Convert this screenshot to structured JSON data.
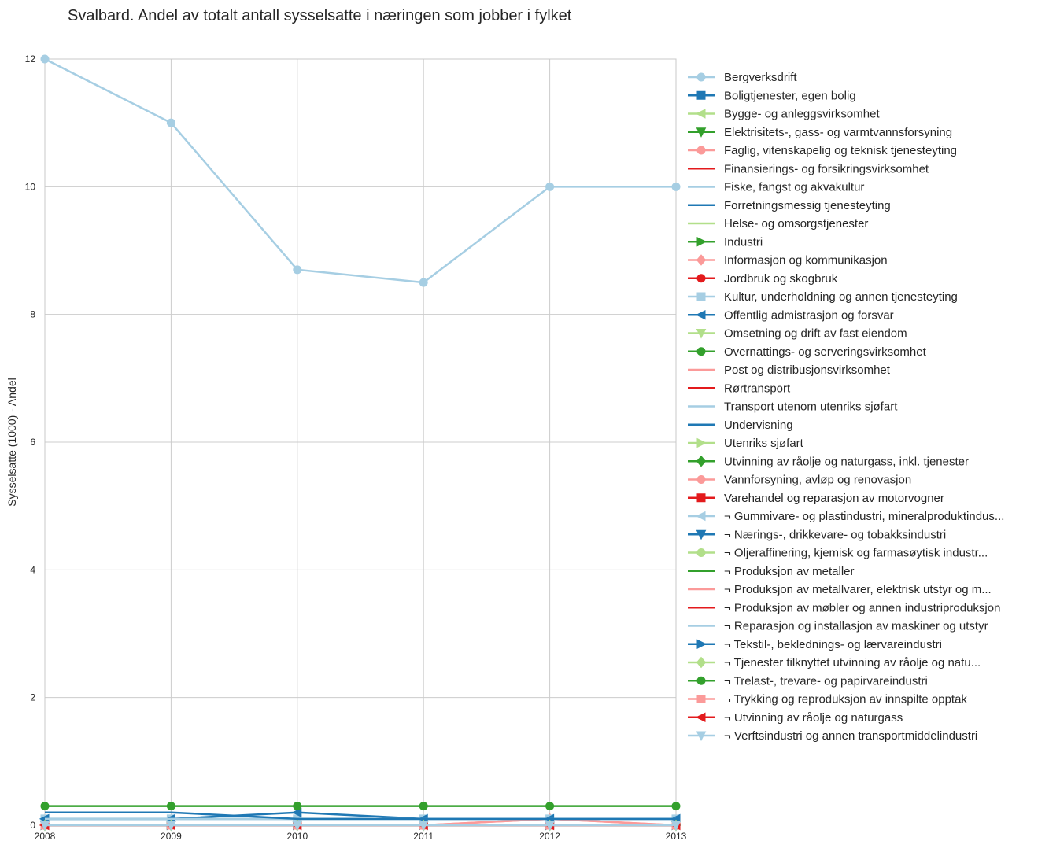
{
  "chart_data": {
    "type": "line",
    "title": "Svalbard. Andel av totalt antall sysselsatte i næringen som jobber i fylket",
    "xlabel": "",
    "ylabel": "Sysselsatte (1000) - Andel",
    "x": [
      2008,
      2009,
      2010,
      2011,
      2012,
      2013
    ],
    "xlim": [
      2008,
      2013
    ],
    "ylim": [
      0,
      12
    ],
    "yticks": [
      0,
      2,
      4,
      6,
      8,
      10,
      12
    ],
    "grid": true,
    "legend_placement": "outside-right",
    "series": [
      {
        "name": "Bergverksdrift",
        "color": "#a6cee3",
        "marker": "circle",
        "values": [
          12,
          11,
          8.7,
          8.5,
          10,
          10
        ]
      },
      {
        "name": "Boligtjenester, egen bolig",
        "color": "#1f78b4",
        "marker": "square",
        "values": [
          0,
          0,
          0,
          0,
          0,
          0
        ]
      },
      {
        "name": "Bygge- og anleggsvirksomhet",
        "color": "#b2df8a",
        "marker": "triangle-left",
        "values": [
          0,
          0,
          0,
          0,
          0,
          0
        ]
      },
      {
        "name": "Elektrisitets-, gass- og varmtvannsforsyning",
        "color": "#33a02c",
        "marker": "triangle-down",
        "values": [
          0,
          0,
          0,
          0,
          0,
          0
        ]
      },
      {
        "name": "Faglig, vitenskapelig og teknisk tjenesteyting",
        "color": "#fb9a99",
        "marker": "circle",
        "values": [
          0,
          0,
          0,
          0,
          0.1,
          0
        ]
      },
      {
        "name": "Finansierings- og forsikringsvirksomhet",
        "color": "#e31a1c",
        "marker": "none",
        "values": [
          0,
          0,
          0,
          0,
          0,
          0
        ]
      },
      {
        "name": "Fiske, fangst og akvakultur",
        "color": "#a6cee3",
        "marker": "none",
        "values": [
          0.1,
          0.1,
          0.1,
          0.1,
          0.1,
          0.1
        ]
      },
      {
        "name": "Forretningsmessig tjenesteyting",
        "color": "#1f78b4",
        "marker": "none",
        "values": [
          0.1,
          0.1,
          0.1,
          0.1,
          0.1,
          0.1
        ]
      },
      {
        "name": "Helse- og omsorgstjenester",
        "color": "#b2df8a",
        "marker": "none",
        "values": [
          0,
          0,
          0,
          0,
          0,
          0
        ]
      },
      {
        "name": "Industri",
        "color": "#33a02c",
        "marker": "triangle-right",
        "values": [
          0,
          0,
          0,
          0,
          0,
          0
        ]
      },
      {
        "name": "Informasjon og kommunikasjon",
        "color": "#fb9a99",
        "marker": "diamond",
        "values": [
          0,
          0,
          0,
          0,
          0.1,
          0
        ]
      },
      {
        "name": "Jordbruk og skogbruk",
        "color": "#e31a1c",
        "marker": "circle",
        "values": [
          0,
          0,
          0,
          0,
          0,
          0
        ]
      },
      {
        "name": "Kultur, underholdning og annen tjenesteyting",
        "color": "#a6cee3",
        "marker": "square",
        "values": [
          0.1,
          0.1,
          0.1,
          0.1,
          0.1,
          0.1
        ]
      },
      {
        "name": "Offentlig admistrasjon og forsvar",
        "color": "#1f78b4",
        "marker": "triangle-left",
        "values": [
          0.1,
          0.1,
          0.2,
          0.1,
          0.1,
          0.1
        ]
      },
      {
        "name": "Omsetning og drift av fast eiendom",
        "color": "#b2df8a",
        "marker": "triangle-down",
        "values": [
          0,
          0,
          0,
          0,
          0,
          0
        ]
      },
      {
        "name": "Overnattings- og serveringsvirksomhet",
        "color": "#33a02c",
        "marker": "circle",
        "values": [
          0.3,
          0.3,
          0.3,
          0.3,
          0.3,
          0.3
        ]
      },
      {
        "name": "Post og distribusjonsvirksomhet",
        "color": "#fb9a99",
        "marker": "none",
        "values": [
          0,
          0,
          0,
          0,
          0,
          0
        ]
      },
      {
        "name": "Rørtransport",
        "color": "#e31a1c",
        "marker": "none",
        "values": [
          0,
          0,
          0,
          0,
          0,
          0
        ]
      },
      {
        "name": "Transport utenom utenriks sjøfart",
        "color": "#a6cee3",
        "marker": "none",
        "values": [
          0.1,
          0.1,
          0.1,
          0.1,
          0.1,
          0.1
        ]
      },
      {
        "name": "Undervisning",
        "color": "#1f78b4",
        "marker": "none",
        "values": [
          0.2,
          0.2,
          0.1,
          0.1,
          0.1,
          0.1
        ]
      },
      {
        "name": "Utenriks sjøfart",
        "color": "#b2df8a",
        "marker": "triangle-right",
        "values": [
          0,
          0,
          0,
          0,
          0,
          0
        ]
      },
      {
        "name": "Utvinning av råolje og naturgass, inkl. tjenester",
        "color": "#33a02c",
        "marker": "diamond",
        "values": [
          0,
          0,
          0,
          0,
          0,
          0
        ]
      },
      {
        "name": "Vannforsyning, avløp og renovasjon",
        "color": "#fb9a99",
        "marker": "circle",
        "values": [
          0,
          0,
          0,
          0,
          0,
          0
        ]
      },
      {
        "name": "Varehandel og reparasjon av motorvogner",
        "color": "#e31a1c",
        "marker": "square",
        "values": [
          0,
          0,
          0,
          0,
          0,
          0
        ]
      },
      {
        "name": "¬ Gummivare- og plastindustri, mineralproduktindus...",
        "color": "#a6cee3",
        "marker": "triangle-left",
        "values": [
          0,
          0,
          0,
          0,
          0,
          0
        ]
      },
      {
        "name": "¬ Nærings-, drikkevare- og tobakksindustri",
        "color": "#1f78b4",
        "marker": "triangle-down",
        "values": [
          0,
          0,
          0,
          0,
          0,
          0
        ]
      },
      {
        "name": "¬ Oljeraffinering, kjemisk og farmasøytisk industr...",
        "color": "#b2df8a",
        "marker": "circle",
        "values": [
          0,
          0,
          0,
          0,
          0,
          0
        ]
      },
      {
        "name": "¬ Produksjon av metaller",
        "color": "#33a02c",
        "marker": "none",
        "values": [
          0,
          0,
          0,
          0,
          0,
          0
        ]
      },
      {
        "name": "¬ Produksjon av metallvarer, elektrisk utstyr og m...",
        "color": "#fb9a99",
        "marker": "none",
        "values": [
          0,
          0,
          0,
          0,
          0,
          0
        ]
      },
      {
        "name": "¬ Produksjon av møbler og annen industriproduksjon",
        "color": "#e31a1c",
        "marker": "none",
        "values": [
          0,
          0,
          0,
          0,
          0,
          0
        ]
      },
      {
        "name": "¬ Reparasjon og installasjon av maskiner og utstyr",
        "color": "#a6cee3",
        "marker": "none",
        "values": [
          0,
          0,
          0,
          0,
          0,
          0
        ]
      },
      {
        "name": "¬ Tekstil-, beklednings- og lærvareindustri",
        "color": "#1f78b4",
        "marker": "triangle-right",
        "values": [
          0,
          0,
          0,
          0,
          0,
          0
        ]
      },
      {
        "name": "¬ Tjenester tilknyttet utvinning av råolje og natu...",
        "color": "#b2df8a",
        "marker": "diamond",
        "values": [
          0,
          0,
          0,
          0,
          0,
          0
        ]
      },
      {
        "name": "¬ Trelast-, trevare- og papirvareindustri",
        "color": "#33a02c",
        "marker": "circle",
        "values": [
          0,
          0,
          0,
          0,
          0,
          0
        ]
      },
      {
        "name": "¬ Trykking og reproduksjon av innspilte opptak",
        "color": "#fb9a99",
        "marker": "square",
        "values": [
          0,
          0,
          0,
          0,
          0,
          0
        ]
      },
      {
        "name": "¬ Utvinning av råolje og naturgass",
        "color": "#e31a1c",
        "marker": "triangle-left",
        "values": [
          0,
          0,
          0,
          0,
          0,
          0
        ]
      },
      {
        "name": "¬ Verftsindustri og annen transportmiddelindustri",
        "color": "#a6cee3",
        "marker": "triangle-down",
        "values": [
          0,
          0,
          0,
          0,
          0,
          0
        ]
      }
    ]
  }
}
